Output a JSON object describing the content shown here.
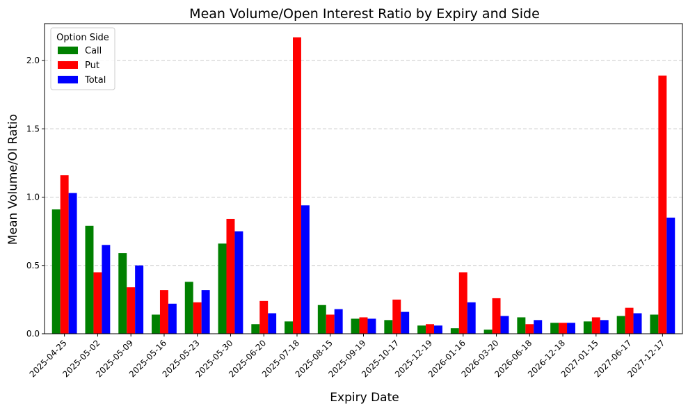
{
  "chart_data": {
    "type": "bar",
    "title": "Mean Volume/Open Interest Ratio by Expiry and Side",
    "xlabel": "Expiry Date",
    "ylabel": "Mean Volume/OI Ratio",
    "ylim": [
      0,
      2.27
    ],
    "yticks": [
      "0.0",
      "0.5",
      "1.0",
      "1.5",
      "2.0"
    ],
    "ytick_values": [
      0,
      0.5,
      1.0,
      1.5,
      2.0
    ],
    "grid": "horizontal dashed",
    "categories": [
      "2025-04-25",
      "2025-05-02",
      "2025-05-09",
      "2025-05-16",
      "2025-05-23",
      "2025-05-30",
      "2025-06-20",
      "2025-07-18",
      "2025-08-15",
      "2025-09-19",
      "2025-10-17",
      "2025-12-19",
      "2026-01-16",
      "2026-03-20",
      "2026-06-18",
      "2026-12-18",
      "2027-01-15",
      "2027-06-17",
      "2027-12-17"
    ],
    "legend": {
      "title": "Option Side",
      "placement": "top-left"
    },
    "series": [
      {
        "name": "Call",
        "color": "#008000",
        "values": [
          0.91,
          0.79,
          0.59,
          0.14,
          0.38,
          0.66,
          0.07,
          0.09,
          0.21,
          0.11,
          0.1,
          0.06,
          0.04,
          0.03,
          0.12,
          0.08,
          0.09,
          0.13,
          0.14
        ]
      },
      {
        "name": "Put",
        "color": "#ff0000",
        "values": [
          1.16,
          0.45,
          0.34,
          0.32,
          0.23,
          0.84,
          0.24,
          2.17,
          0.14,
          0.12,
          0.25,
          0.07,
          0.45,
          0.26,
          0.07,
          0.08,
          0.12,
          0.19,
          1.89
        ]
      },
      {
        "name": "Total",
        "color": "#0000ff",
        "values": [
          1.03,
          0.65,
          0.5,
          0.22,
          0.32,
          0.75,
          0.15,
          0.94,
          0.18,
          0.11,
          0.16,
          0.06,
          0.23,
          0.13,
          0.1,
          0.08,
          0.1,
          0.15,
          0.85
        ]
      }
    ]
  }
}
